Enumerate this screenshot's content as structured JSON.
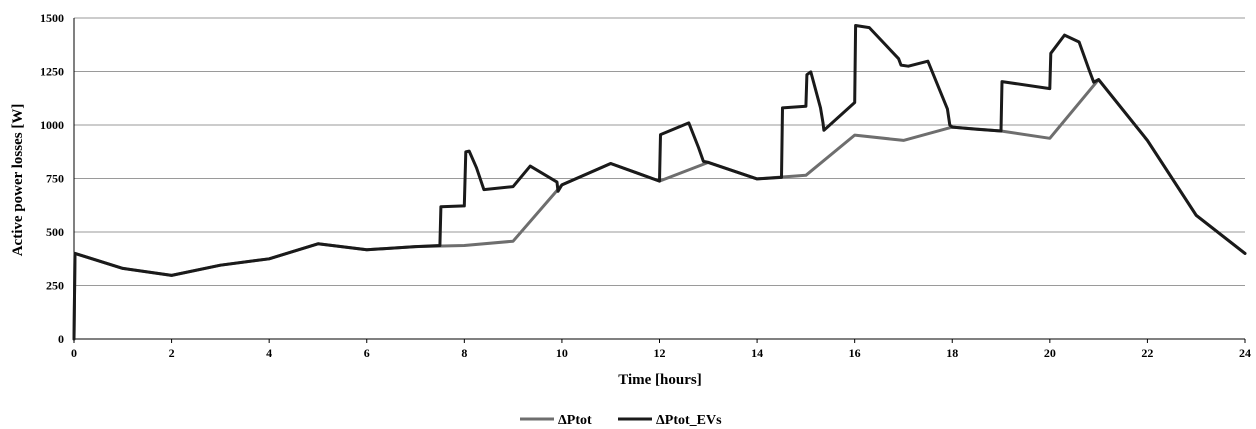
{
  "chart_data": {
    "type": "line",
    "title": "",
    "xlabel": "Time [hours]",
    "ylabel": "Active power losses [W]",
    "xlim": [
      0,
      24
    ],
    "ylim": [
      0,
      1500
    ],
    "x_ticks": [
      "0",
      "2",
      "4",
      "6",
      "8",
      "10",
      "12",
      "14",
      "16",
      "18",
      "20",
      "22",
      "24"
    ],
    "y_ticks": [
      "0",
      "250",
      "500",
      "750",
      "1000",
      "1250",
      "1500"
    ],
    "grid": "horizontal",
    "legend": "bottom",
    "series": [
      {
        "name": "ΔPtot",
        "color": "#6e6e6e",
        "points": [
          [
            0,
            0
          ],
          [
            0.02,
            400
          ],
          [
            1,
            330
          ],
          [
            2,
            297
          ],
          [
            3,
            345
          ],
          [
            4,
            375
          ],
          [
            5,
            445
          ],
          [
            6,
            417
          ],
          [
            7,
            432
          ],
          [
            8,
            437
          ],
          [
            9,
            457
          ],
          [
            10,
            720
          ],
          [
            11,
            820
          ],
          [
            12,
            738
          ],
          [
            13,
            825
          ],
          [
            14,
            748
          ],
          [
            15,
            765
          ],
          [
            16,
            953
          ],
          [
            17,
            928
          ],
          [
            18,
            990
          ],
          [
            19,
            972
          ],
          [
            20,
            938
          ],
          [
            21,
            1212
          ],
          [
            22,
            928
          ],
          [
            23,
            578
          ],
          [
            24,
            400
          ]
        ]
      },
      {
        "name": "ΔPtot_EVs",
        "color": "#1a1a1a",
        "points": [
          [
            0,
            0
          ],
          [
            0.02,
            400
          ],
          [
            1,
            330
          ],
          [
            2,
            297
          ],
          [
            3,
            345
          ],
          [
            4,
            375
          ],
          [
            5,
            445
          ],
          [
            6,
            417
          ],
          [
            7,
            432
          ],
          [
            7.5,
            437
          ],
          [
            7.52,
            618
          ],
          [
            8,
            622
          ],
          [
            8.03,
            875
          ],
          [
            8.1,
            878
          ],
          [
            8.25,
            800
          ],
          [
            8.4,
            698
          ],
          [
            9,
            712
          ],
          [
            9.35,
            808
          ],
          [
            9.9,
            733
          ],
          [
            9.92,
            690
          ],
          [
            10,
            720
          ],
          [
            11,
            820
          ],
          [
            12,
            738
          ],
          [
            12.02,
            955
          ],
          [
            12.6,
            1010
          ],
          [
            12.8,
            895
          ],
          [
            12.9,
            830
          ],
          [
            13,
            825
          ],
          [
            14,
            748
          ],
          [
            14.5,
            755
          ],
          [
            14.52,
            1080
          ],
          [
            15,
            1088
          ],
          [
            15.02,
            1235
          ],
          [
            15.1,
            1248
          ],
          [
            15.3,
            1080
          ],
          [
            15.35,
            1010
          ],
          [
            15.37,
            975
          ],
          [
            16,
            1105
          ],
          [
            16.02,
            1465
          ],
          [
            16.3,
            1455
          ],
          [
            16.9,
            1310
          ],
          [
            16.95,
            1280
          ],
          [
            17.1,
            1275
          ],
          [
            17.5,
            1298
          ],
          [
            17.9,
            1075
          ],
          [
            17.95,
            1000
          ],
          [
            18,
            990
          ],
          [
            18.5,
            980
          ],
          [
            19,
            972
          ],
          [
            19.02,
            1203
          ],
          [
            20,
            1170
          ],
          [
            20.02,
            1335
          ],
          [
            20.3,
            1420
          ],
          [
            20.6,
            1388
          ],
          [
            20.8,
            1260
          ],
          [
            20.9,
            1200
          ],
          [
            21,
            1212
          ],
          [
            22,
            928
          ],
          [
            23,
            578
          ],
          [
            24,
            400
          ]
        ]
      }
    ]
  }
}
